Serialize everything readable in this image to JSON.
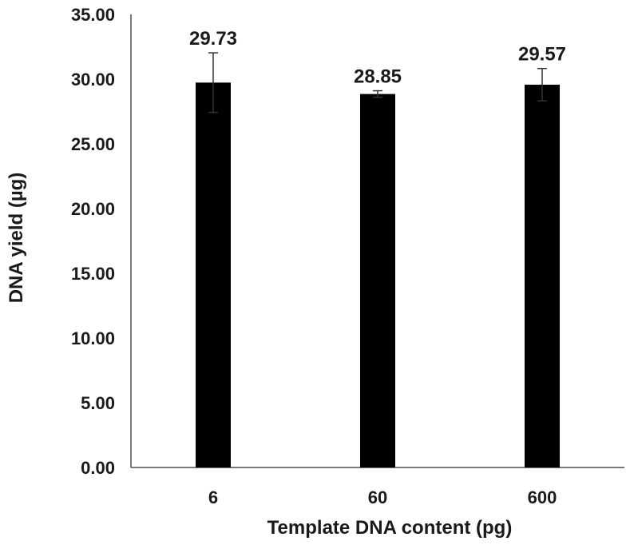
{
  "chart_data": {
    "type": "bar",
    "title": "",
    "xlabel": "Template DNA content (pg)",
    "ylabel": "DNA yield (µg)",
    "categories": [
      "6",
      "60",
      "600"
    ],
    "values": [
      29.73,
      28.85,
      29.57
    ],
    "data_labels": [
      "29.73",
      "28.85",
      "29.57"
    ],
    "error": [
      2.3,
      0.25,
      1.25
    ],
    "ylim": [
      0,
      35
    ],
    "yticks": [
      0,
      5,
      10,
      15,
      20,
      25,
      30,
      35
    ],
    "ytick_labels": [
      "0.00",
      "5.00",
      "10.00",
      "15.00",
      "20.00",
      "25.00",
      "30.00",
      "35.00"
    ],
    "bar_color": "#000000",
    "grid": false,
    "legend": "none"
  }
}
